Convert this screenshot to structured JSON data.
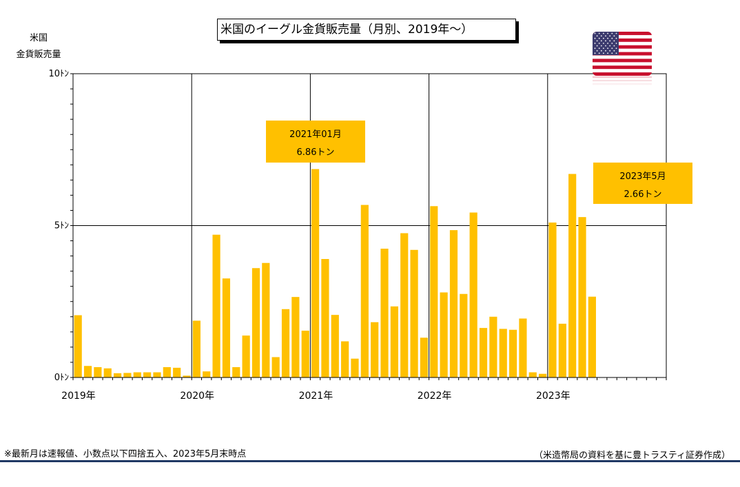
{
  "title": "米国のイーグル金貨販売量（月別、2019年～）",
  "y_axis_label_lines": [
    "米国",
    "金貨販売量"
  ],
  "callouts": [
    {
      "line1": "2021年01月",
      "line2": "6.86トン"
    },
    {
      "line1": "2023年5月",
      "line2": "2.66トン"
    }
  ],
  "footnote": "※最新月は速報値、小数点以下四捨五入、2023年5月末時点",
  "source": "（米造幣局の資料を基に豊トラスティ証券作成）",
  "flag_icon": "us-flag-icon",
  "colors": {
    "bar": "#ffc000",
    "rule": "#1f3864",
    "flag_red": "#c8102e",
    "flag_blue": "#3c3b6e"
  },
  "chart_data": {
    "type": "bar",
    "title": "米国のイーグル金貨販売量（月別、2019年～）",
    "ylabel": "米国 金貨販売量",
    "xlabel": "",
    "ylim": [
      0,
      10
    ],
    "yticks": [
      {
        "value": 0,
        "label": "0ﾄﾝ"
      },
      {
        "value": 5,
        "label": "5ﾄﾝ"
      },
      {
        "value": 10,
        "label": "10ﾄﾝ"
      }
    ],
    "xticks": [
      "2019年",
      "2020年",
      "2021年",
      "2022年",
      "2023年"
    ],
    "grid": true,
    "months_total": 60,
    "start": "2019-01",
    "values": [
      2.05,
      0.38,
      0.34,
      0.3,
      0.14,
      0.15,
      0.17,
      0.17,
      0.17,
      0.34,
      0.32,
      0.06,
      1.87,
      0.2,
      4.7,
      3.26,
      0.34,
      1.38,
      3.6,
      3.77,
      0.67,
      2.25,
      2.65,
      1.54,
      6.86,
      3.9,
      2.06,
      1.19,
      0.62,
      5.68,
      1.82,
      4.24,
      2.34,
      4.75,
      4.2,
      1.31,
      5.64,
      2.8,
      4.85,
      2.75,
      5.43,
      1.63,
      2.0,
      1.6,
      1.57,
      1.94,
      0.17,
      0.12,
      5.1,
      1.77,
      6.7,
      5.28,
      2.66
    ]
  }
}
